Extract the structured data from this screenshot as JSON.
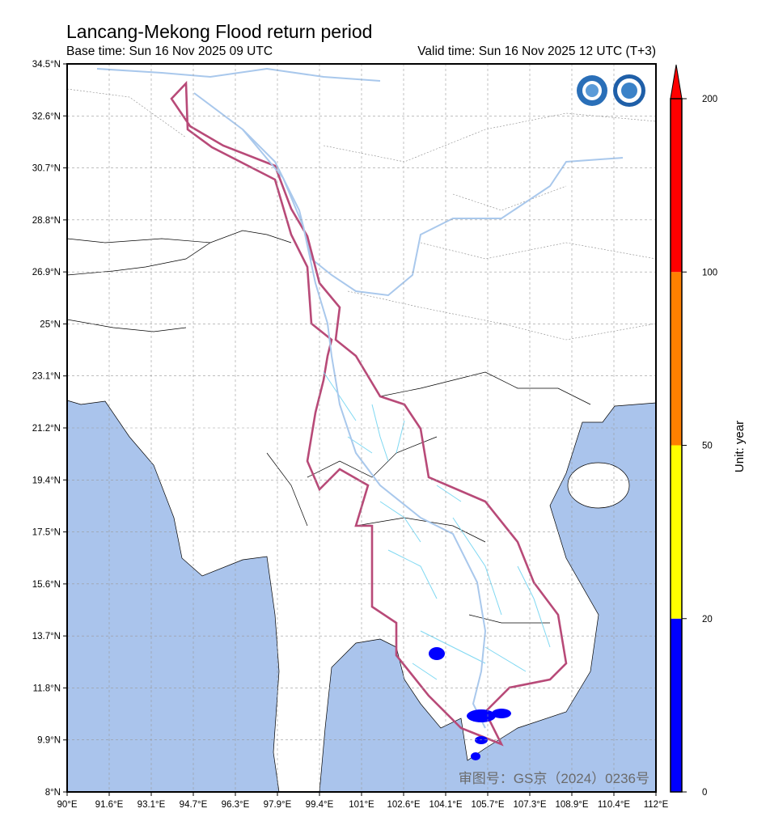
{
  "title": "Lancang-Mekong Flood return period",
  "base_time": "Base time: Sun 16 Nov 2025 09 UTC",
  "valid_time": "Valid time: Sun 16 Nov 2025 12 UTC (T+3)",
  "axes": {
    "lon_ticks": [
      "90°E",
      "91.6°E",
      "93.1°E",
      "94.7°E",
      "96.3°E",
      "97.9°E",
      "99.4°E",
      "101°E",
      "102.6°E",
      "104.1°E",
      "105.7°E",
      "107.3°E",
      "108.9°E",
      "110.4°E",
      "112°E"
    ],
    "lat_ticks": [
      "34.5°N",
      "32.6°N",
      "30.7°N",
      "28.8°N",
      "26.9°N",
      "25°N",
      "23.1°N",
      "21.2°N",
      "19.4°N",
      "17.5°N",
      "15.6°N",
      "13.7°N",
      "11.8°N",
      "9.9°N",
      "8°N"
    ],
    "lon_range": [
      90,
      112
    ],
    "lat_range": [
      8,
      34.5
    ],
    "grid": true
  },
  "colorbar": {
    "label": "Unit: year",
    "levels": [
      "0",
      "20",
      "50",
      "100",
      "200"
    ],
    "colors": [
      "#0000ff",
      "#ffff00",
      "#ff8000",
      "#ff0000"
    ],
    "extend": "max"
  },
  "colors": {
    "ocean": "#aac4ec",
    "basin_outline": "#b84a78",
    "river": "#7fd8f2",
    "mainstream": "#a9c8ec",
    "flood": "#0000ff"
  },
  "watermark": "审图号：GS京（2024）0236号",
  "logos": [
    "wmo-logo",
    "cma-logo"
  ]
}
